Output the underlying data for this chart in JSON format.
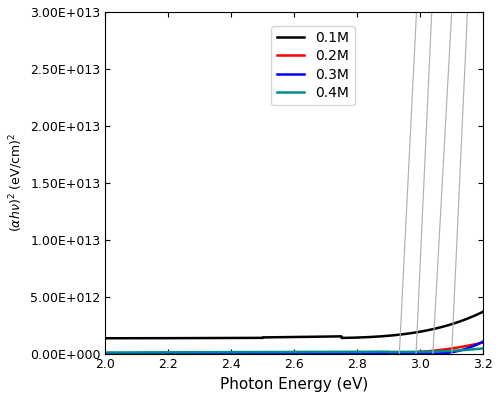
{
  "xlabel": "Photon Energy (eV)",
  "ylabel": "(αhν)² (eV/cm)²",
  "xlim": [
    2.0,
    3.2
  ],
  "ylim": [
    0,
    30000000000000.0
  ],
  "legend_labels": [
    "0.1M",
    "0.2M",
    "0.3M",
    "0.4M"
  ],
  "colors": [
    "black",
    "red",
    "blue",
    "#008B8B"
  ],
  "linewidths": [
    1.8,
    1.8,
    1.8,
    1.8
  ],
  "tangent_color": "#b0b0b0",
  "tangent_linewidth": 0.85,
  "yticks": [
    0,
    5000000000000.0,
    10000000000000.0,
    15000000000000.0,
    20000000000000.0,
    25000000000000.0,
    30000000000000.0
  ],
  "ytick_labels": [
    "0.00E+000",
    "5.00E+012",
    "1.00E+013",
    "1.50E+013",
    "2.00E+013",
    "2.50E+013",
    "3.00E+013"
  ],
  "xticks": [
    2.0,
    2.2,
    2.4,
    2.6,
    2.8,
    3.0,
    3.2
  ]
}
